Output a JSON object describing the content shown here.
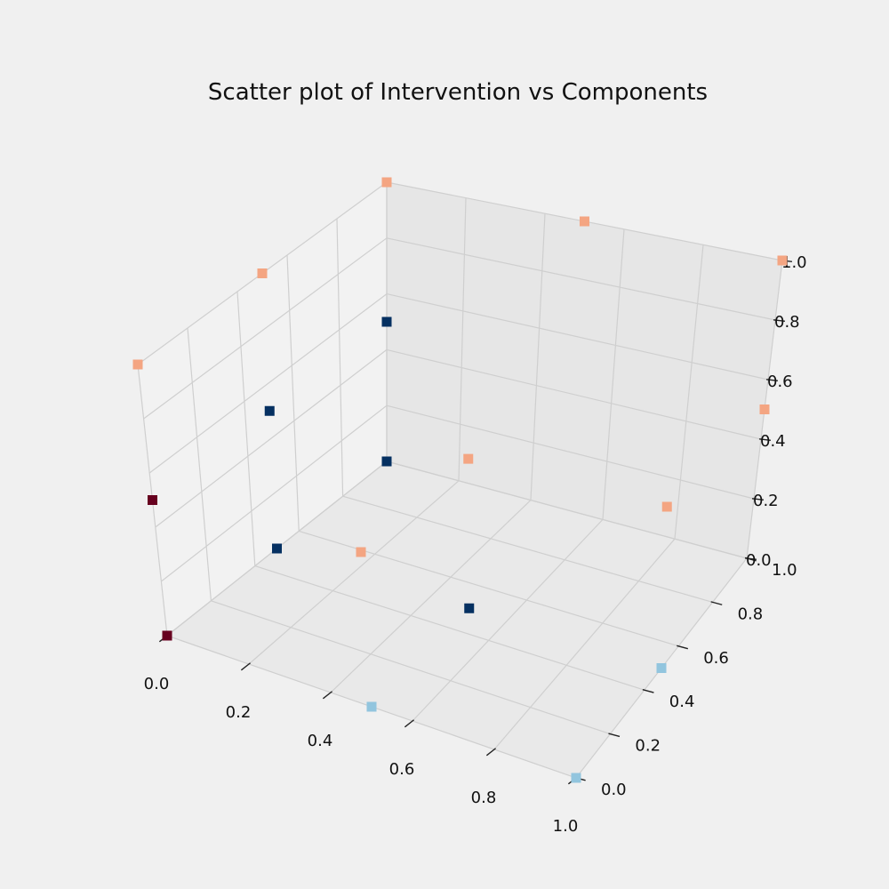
{
  "chart_data": {
    "type": "scatter",
    "projection": "3d",
    "title": "Scatter plot of Intervention vs Components",
    "xlabel": "",
    "ylabel": "",
    "zlabel": "",
    "xlim": [
      0,
      1
    ],
    "ylim": [
      0,
      1
    ],
    "zlim": [
      0,
      1
    ],
    "grid": true,
    "marker": "square",
    "colormap": "RdBu",
    "x_ticks": [
      "0.0",
      "0.2",
      "0.4",
      "0.6",
      "0.8",
      "1.0"
    ],
    "y_ticks": [
      "0.0",
      "0.2",
      "0.4",
      "0.6",
      "0.8",
      "1.0"
    ],
    "z_ticks": [
      "0.0",
      "0.2",
      "0.4",
      "0.6",
      "0.8",
      "1.0"
    ],
    "points": [
      {
        "x": 0.0,
        "y": 0.0,
        "z": 0.0,
        "color": "#67001f"
      },
      {
        "x": 0.0,
        "y": 0.0,
        "z": 0.5,
        "color": "#67001f"
      },
      {
        "x": 0.0,
        "y": 0.0,
        "z": 1.0,
        "color": "#f4a582"
      },
      {
        "x": 0.0,
        "y": 0.5,
        "z": 0.0,
        "color": "#053061"
      },
      {
        "x": 0.0,
        "y": 0.5,
        "z": 0.5,
        "color": "#053061"
      },
      {
        "x": 0.0,
        "y": 0.5,
        "z": 1.0,
        "color": "#f4a582"
      },
      {
        "x": 0.0,
        "y": 1.0,
        "z": 0.0,
        "color": "#053061"
      },
      {
        "x": 0.0,
        "y": 1.0,
        "z": 0.5,
        "color": "#053061"
      },
      {
        "x": 0.0,
        "y": 1.0,
        "z": 1.0,
        "color": "#f4a582"
      },
      {
        "x": 0.5,
        "y": 0.0,
        "z": 0.0,
        "color": "#92c5de"
      },
      {
        "x": 0.5,
        "y": 0.0,
        "z": 0.5,
        "color": "#f4a582"
      },
      {
        "x": 0.5,
        "y": 0.5,
        "z": 0.0,
        "color": "#053061"
      },
      {
        "x": 0.5,
        "y": 0.5,
        "z": 0.5,
        "color": "#f4a582"
      },
      {
        "x": 0.5,
        "y": 1.0,
        "z": 1.0,
        "color": "#f4a582"
      },
      {
        "x": 1.0,
        "y": 0.0,
        "z": 0.0,
        "color": "#92c5de"
      },
      {
        "x": 1.0,
        "y": 0.5,
        "z": 0.0,
        "color": "#92c5de"
      },
      {
        "x": 1.0,
        "y": 0.5,
        "z": 0.5,
        "color": "#f4a582"
      },
      {
        "x": 1.0,
        "y": 1.0,
        "z": 0.5,
        "color": "#f4a582"
      },
      {
        "x": 1.0,
        "y": 1.0,
        "z": 1.0,
        "color": "#f4a582"
      }
    ]
  }
}
